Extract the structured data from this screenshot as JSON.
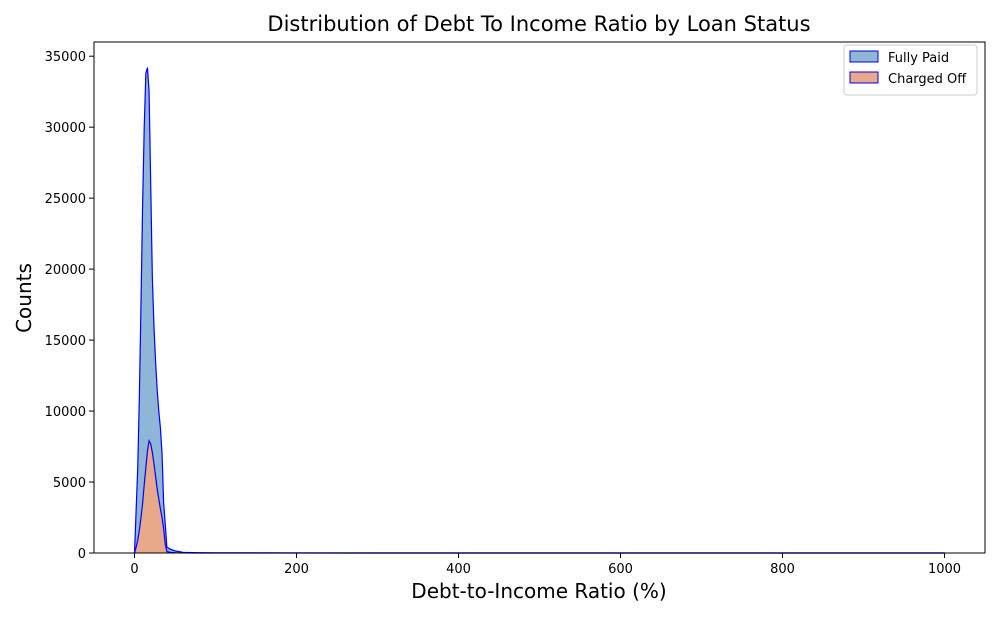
{
  "chart_data": {
    "type": "area",
    "title": "Distribution of Debt To Income Ratio by Loan Status",
    "xlabel": "Debt-to-Income Ratio (%)",
    "ylabel": "Counts",
    "xlim": [
      -50,
      1050
    ],
    "ylim": [
      0,
      36000
    ],
    "xticks": [
      0,
      200,
      400,
      600,
      800,
      1000
    ],
    "yticks": [
      0,
      5000,
      10000,
      15000,
      20000,
      25000,
      30000,
      35000
    ],
    "grid": false,
    "legend_position": "top-right",
    "series": [
      {
        "name": "Fully Paid",
        "fill": "#8fb5d7",
        "stroke": "#0000ff",
        "x": [
          0,
          2,
          4,
          6,
          8,
          10,
          12,
          14,
          16,
          18,
          20,
          22,
          24,
          26,
          28,
          30,
          32,
          34,
          36,
          38,
          40,
          45,
          50,
          60,
          80,
          100,
          200,
          400,
          600,
          800,
          1000
        ],
        "values": [
          0,
          3000,
          6000,
          11000,
          17500,
          24500,
          30000,
          33800,
          34200,
          32500,
          26000,
          19500,
          16000,
          13500,
          11500,
          10000,
          8800,
          7000,
          3500,
          2000,
          400,
          250,
          150,
          50,
          20,
          10,
          5,
          0,
          0,
          0,
          0
        ]
      },
      {
        "name": "Charged Off",
        "fill": "#e8a88a",
        "stroke": "#0000ff",
        "x": [
          0,
          2,
          4,
          6,
          8,
          10,
          12,
          14,
          16,
          18,
          20,
          22,
          24,
          26,
          28,
          30,
          32,
          34,
          36,
          38,
          40,
          45,
          50,
          60,
          80,
          100,
          200,
          400,
          600,
          800,
          1000
        ],
        "values": [
          0,
          400,
          900,
          1600,
          2500,
          3500,
          4800,
          6000,
          7200,
          7900,
          7700,
          7100,
          6300,
          5400,
          4500,
          3800,
          3100,
          2500,
          1700,
          600,
          100,
          40,
          20,
          5,
          0,
          0,
          0,
          0,
          0,
          0,
          0
        ]
      }
    ]
  }
}
